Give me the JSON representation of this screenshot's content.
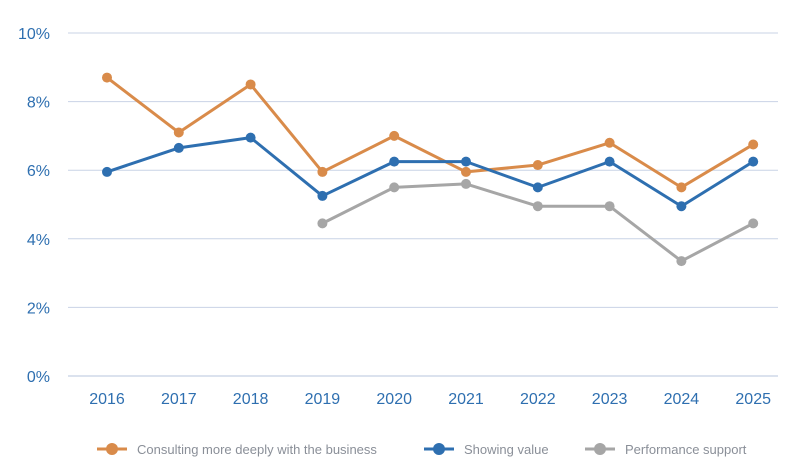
{
  "chart_data": {
    "type": "line",
    "title": "",
    "xlabel": "",
    "ylabel": "",
    "x": [
      "2016",
      "2017",
      "2018",
      "2019",
      "2020",
      "2021",
      "2022",
      "2023",
      "2024",
      "2025"
    ],
    "ylim": [
      0,
      10
    ],
    "yticks": [
      "0%",
      "2%",
      "4%",
      "6%",
      "8%",
      "10%"
    ],
    "grid": true,
    "legend_position": "bottom",
    "series": [
      {
        "name": "Consulting more deeply with the business",
        "color": "#d98b4a",
        "values": [
          8.7,
          7.1,
          8.5,
          5.95,
          7.0,
          5.95,
          6.15,
          6.8,
          5.5,
          6.75
        ]
      },
      {
        "name": "Showing value",
        "color": "#2e6fb0",
        "values": [
          5.95,
          6.65,
          6.95,
          5.25,
          6.25,
          6.25,
          5.5,
          6.25,
          4.95,
          6.25
        ]
      },
      {
        "name": "Performance support",
        "color": "#a6a6a6",
        "values": [
          null,
          null,
          null,
          4.45,
          5.5,
          5.6,
          4.95,
          4.95,
          3.35,
          4.45
        ]
      }
    ]
  }
}
